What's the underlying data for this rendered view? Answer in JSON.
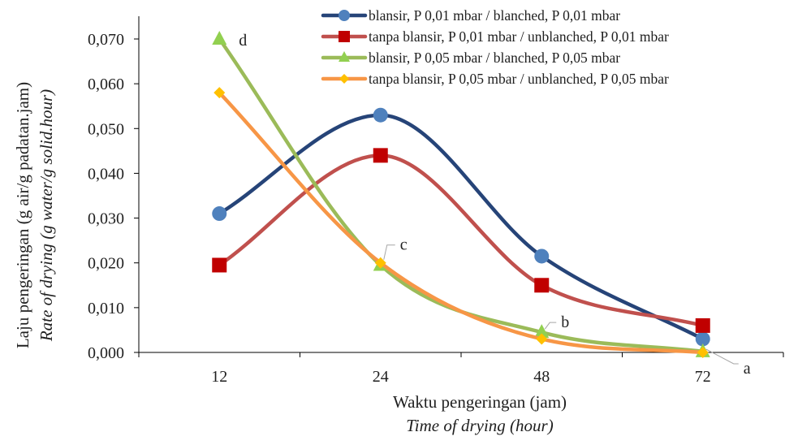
{
  "chart_data": {
    "type": "line",
    "categories": [
      "12",
      "24",
      "48",
      "72"
    ],
    "ylim": [
      0,
      0.07
    ],
    "yticks": [
      "0,000",
      "0,010",
      "0,020",
      "0,030",
      "0,040",
      "0,050",
      "0,060",
      "0,070"
    ],
    "ylabel": "Laju pengeringan (g air/g padatan.jam)",
    "ylabel_en": "Rate of drying (g water/g solid.hour)",
    "xlabel": "Waktu pengeringan (jam)",
    "xlabel_en": "Time of drying (hour)",
    "grid": false,
    "legend_position": "top-right",
    "smooth": true,
    "series": [
      {
        "name": "blansir, P 0,01 mbar / blanched, P 0,01 mbar",
        "color": "#264478",
        "marker_color": "#4f81bd",
        "marker": "circle",
        "values": [
          0.031,
          0.053,
          0.0215,
          0.003
        ]
      },
      {
        "name": "tanpa blansir, P 0,01 mbar / unblanched, P 0,01 mbar",
        "color": "#c0504d",
        "marker_color": "#c00000",
        "marker": "square",
        "values": [
          0.0195,
          0.044,
          0.015,
          0.006
        ]
      },
      {
        "name": "blansir, P 0,05 mbar / blanched, P 0,05 mbar",
        "color": "#9bbb59",
        "marker_color": "#92d050",
        "marker": "triangle",
        "values": [
          0.07,
          0.0195,
          0.0045,
          0.0002
        ]
      },
      {
        "name": "tanpa blansir, P 0,05 mbar / unblanched, P 0,05 mbar",
        "color": "#f79646",
        "marker_color": "#ffc000",
        "marker": "diamond",
        "values": [
          0.058,
          0.02,
          0.003,
          0.0
        ]
      }
    ],
    "annotations": [
      {
        "label": "d",
        "category": "12",
        "value": 0.07
      },
      {
        "label": "c",
        "category": "24",
        "value": 0.02
      },
      {
        "label": "b",
        "category": "48",
        "value": 0.0045
      },
      {
        "label": "a",
        "category": "72",
        "value": 0.0
      }
    ]
  }
}
